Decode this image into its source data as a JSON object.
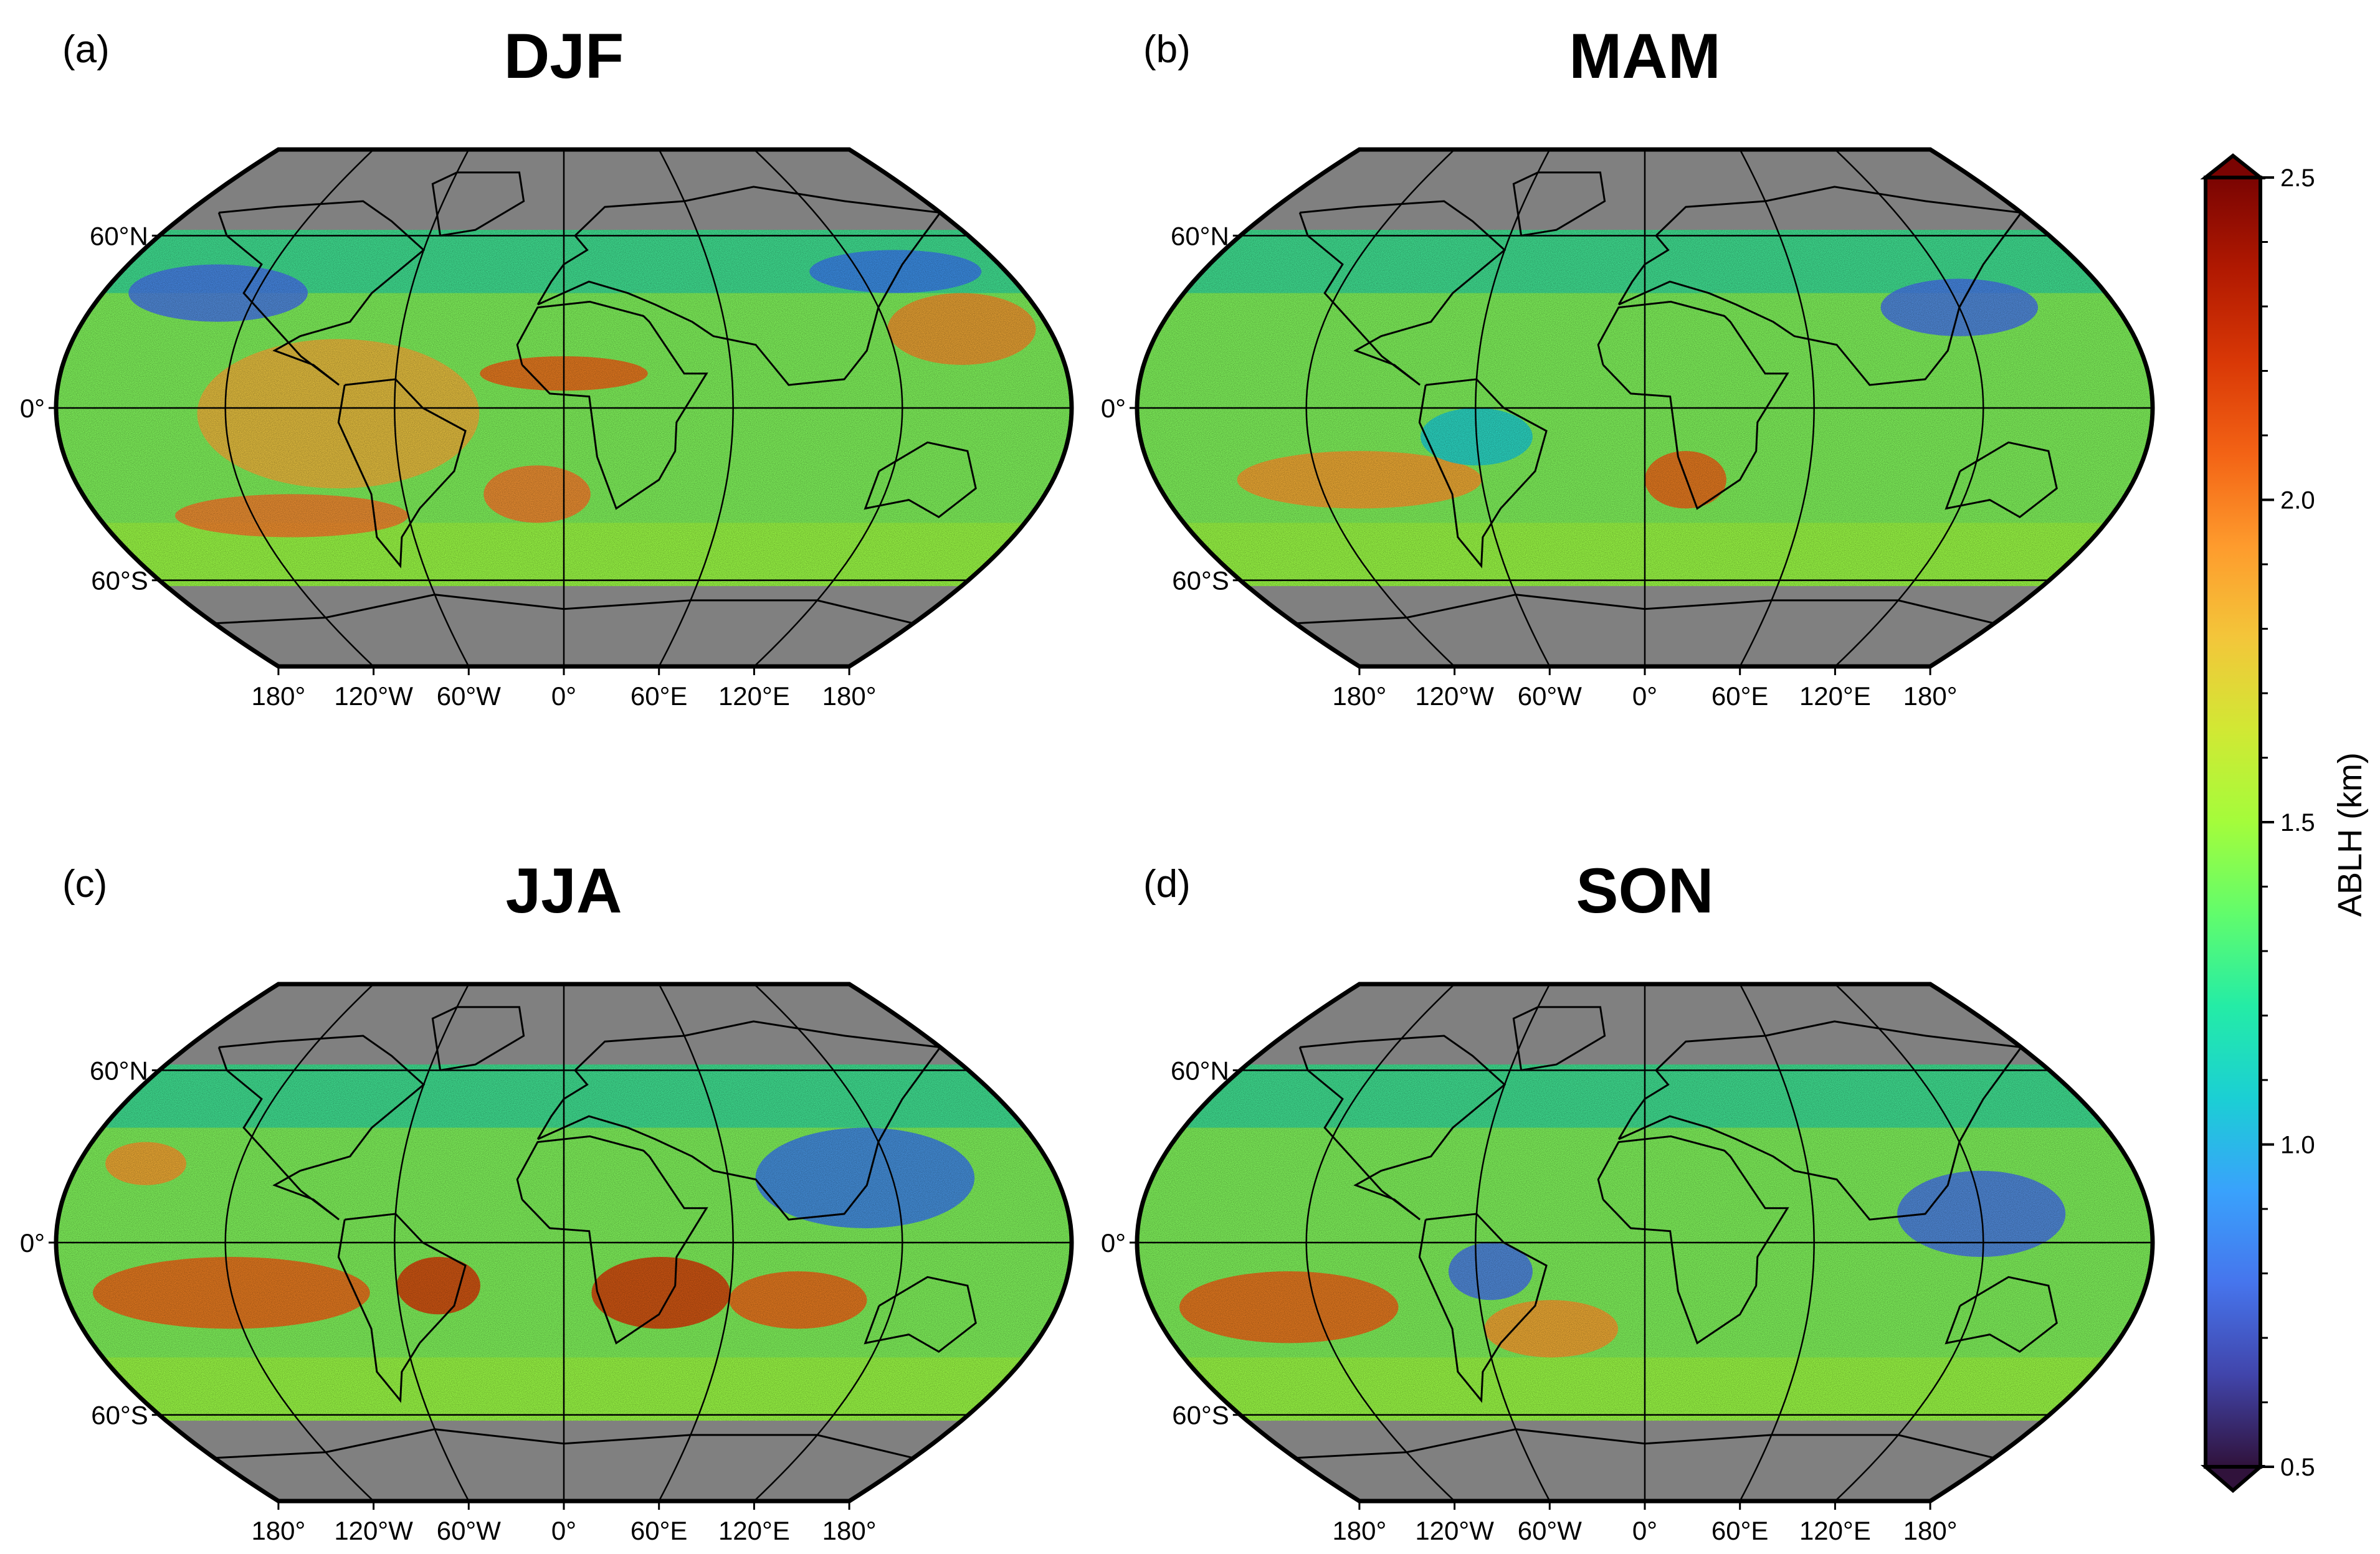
{
  "panels": [
    {
      "id": "a",
      "label": "(a)",
      "title": "DJF"
    },
    {
      "id": "b",
      "label": "(b)",
      "title": "MAM"
    },
    {
      "id": "c",
      "label": "(c)",
      "title": "JJA"
    },
    {
      "id": "d",
      "label": "(d)",
      "title": "SON"
    }
  ],
  "lat_labels": [
    "60°N",
    "0°",
    "60°S"
  ],
  "lon_labels": [
    "180°",
    "120°W",
    "60°W",
    "0°",
    "60°E",
    "120°E",
    "180°"
  ],
  "colorbar": {
    "label": "ABLH (km)",
    "ticks": [
      "2.5",
      "2.0",
      "1.5",
      "1.0",
      "0.5"
    ],
    "min": 0.5,
    "max": 2.5,
    "extend": "both",
    "colormap": [
      "#30123b",
      "#4145ab",
      "#4675ed",
      "#39a2fc",
      "#1bcfd4",
      "#24eca6",
      "#61fc6c",
      "#a4fc3b",
      "#d1e834",
      "#f3c63a",
      "#fe9b2d",
      "#f36315",
      "#d93806",
      "#b11901",
      "#7a0402"
    ]
  },
  "colors": {
    "no_data": "#808080",
    "coastline": "#000000",
    "background": "#ffffff"
  }
}
